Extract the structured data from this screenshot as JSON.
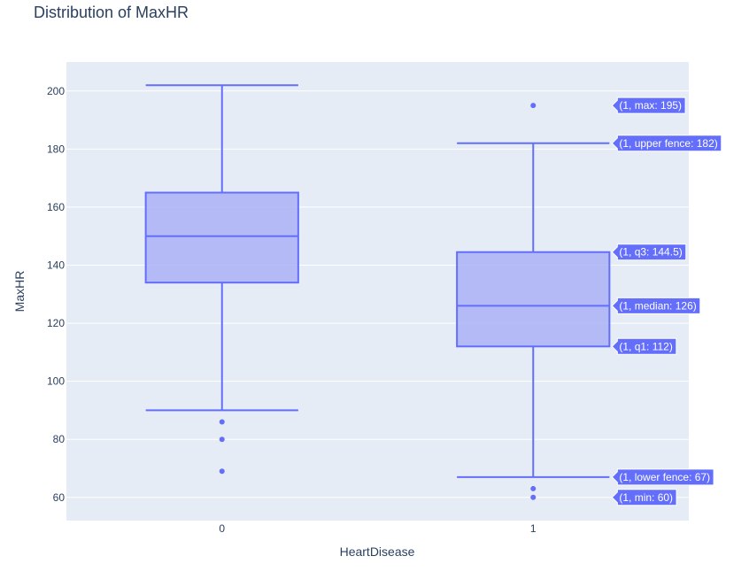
{
  "chart_data": {
    "type": "box",
    "title": "Distribution of MaxHR",
    "xlabel": "HeartDisease",
    "ylabel": "MaxHR",
    "categories": [
      "0",
      "1"
    ],
    "ylim": [
      52,
      210
    ],
    "yticks": [
      60,
      80,
      100,
      120,
      140,
      160,
      180,
      200
    ],
    "grid": true,
    "series": [
      {
        "category": "0",
        "lower_fence": 90,
        "q1": 134,
        "median": 150,
        "q3": 165,
        "upper_fence": 202,
        "outliers": [
          86,
          80,
          69
        ]
      },
      {
        "category": "1",
        "lower_fence": 67,
        "q1": 112,
        "median": 126,
        "q3": 144.5,
        "upper_fence": 182,
        "min": 60,
        "max": 195,
        "outliers": [
          195,
          63,
          60
        ]
      }
    ],
    "hover_labels": [
      "(1, max: 195)",
      "(1, upper fence: 182)",
      "(1, q3: 144.5)",
      "(1, median: 126)",
      "(1, q1: 112)",
      "(1, lower fence: 67)",
      "(1, min: 60)"
    ],
    "colors": {
      "box_fill": "#aab1f4",
      "box_line": "#636efa",
      "plot_bg": "#e5ecf6",
      "grid": "#ffffff",
      "text": "#2a3f5f"
    }
  }
}
